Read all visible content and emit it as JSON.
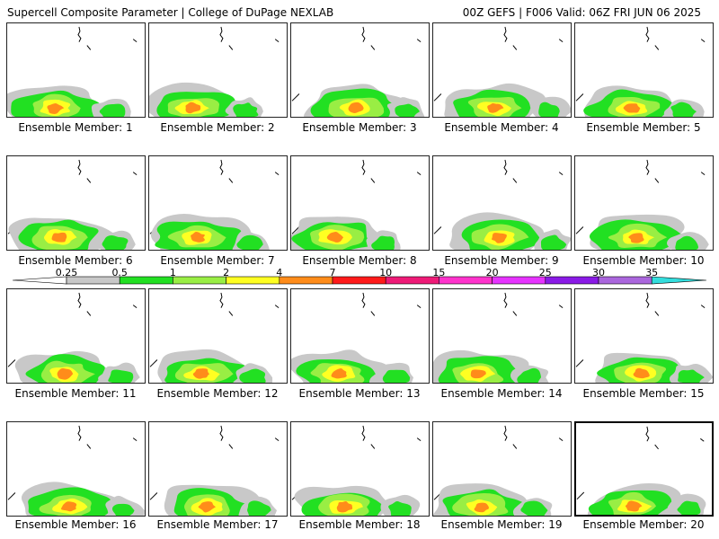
{
  "header": {
    "left_title": "Supercell Composite Parameter | College of DuPage NEXLAB",
    "right_title": "00Z GEFS | F006 Valid: 06Z FRI JUN 06 2025"
  },
  "colorbar": {
    "ticks": [
      "0.25",
      "0.5",
      "1",
      "2",
      "4",
      "7",
      "10",
      "15",
      "20",
      "25",
      "30",
      "35"
    ],
    "colors": [
      "#ffffff",
      "#c8c8c8",
      "#22e022",
      "#99ee44",
      "#ffff22",
      "#ff8c1a",
      "#ff1a1a",
      "#ee1a77",
      "#ff33cc",
      "#e633ff",
      "#8a1ae6",
      "#aa66dd",
      "#33dddd"
    ]
  },
  "selected_member": 20,
  "members": [
    {
      "label": "Ensemble Member: 1"
    },
    {
      "label": "Ensemble Member: 2"
    },
    {
      "label": "Ensemble Member: 3"
    },
    {
      "label": "Ensemble Member: 4"
    },
    {
      "label": "Ensemble Member: 5"
    },
    {
      "label": "Ensemble Member: 6"
    },
    {
      "label": "Ensemble Member: 7"
    },
    {
      "label": "Ensemble Member: 8"
    },
    {
      "label": "Ensemble Member: 9"
    },
    {
      "label": "Ensemble Member: 10"
    },
    {
      "label": "Ensemble Member: 11"
    },
    {
      "label": "Ensemble Member: 12"
    },
    {
      "label": "Ensemble Member: 13"
    },
    {
      "label": "Ensemble Member: 14"
    },
    {
      "label": "Ensemble Member: 15"
    },
    {
      "label": "Ensemble Member: 16"
    },
    {
      "label": "Ensemble Member: 17"
    },
    {
      "label": "Ensemble Member: 18"
    },
    {
      "label": "Ensemble Member: 19"
    },
    {
      "label": "Ensemble Member: 20"
    }
  ]
}
